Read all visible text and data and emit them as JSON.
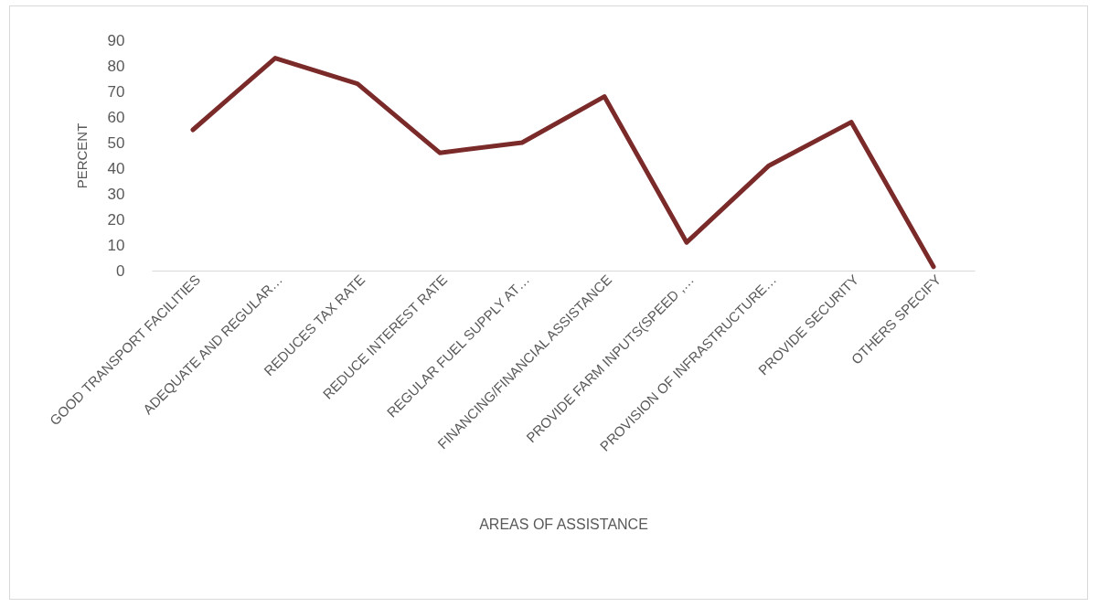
{
  "chart_data": {
    "type": "line",
    "xlabel": "AREAS OF ASSISTANCE",
    "ylabel": "PERCENT",
    "categories": [
      "GOOD TRANSPORT FACILITIES",
      "ADEQUATE AND REGULAR…",
      "REDUCES TAX RATE",
      "REDUCE INTEREST RATE",
      "REGULAR FUEL SUPPLY AT…",
      "FINANCING/FINANCIAL ASSISTANCE",
      "PROVIDE FARM INPUTS(SPEED ,…",
      "PROVISION OF INFRASTRUCTURE…",
      "PROVIDE SECURITY",
      "OTHERS SPECIFY"
    ],
    "series": [
      {
        "color": "#7b2a2a",
        "values": [
          55,
          83,
          73,
          46,
          50,
          68,
          11,
          41,
          58,
          1.5
        ]
      }
    ],
    "ylim": [
      0,
      90
    ],
    "yticks": [
      0,
      10,
      20,
      30,
      40,
      50,
      60,
      70,
      80,
      90
    ],
    "grid": false,
    "marker": "none",
    "line_style": "solid"
  }
}
